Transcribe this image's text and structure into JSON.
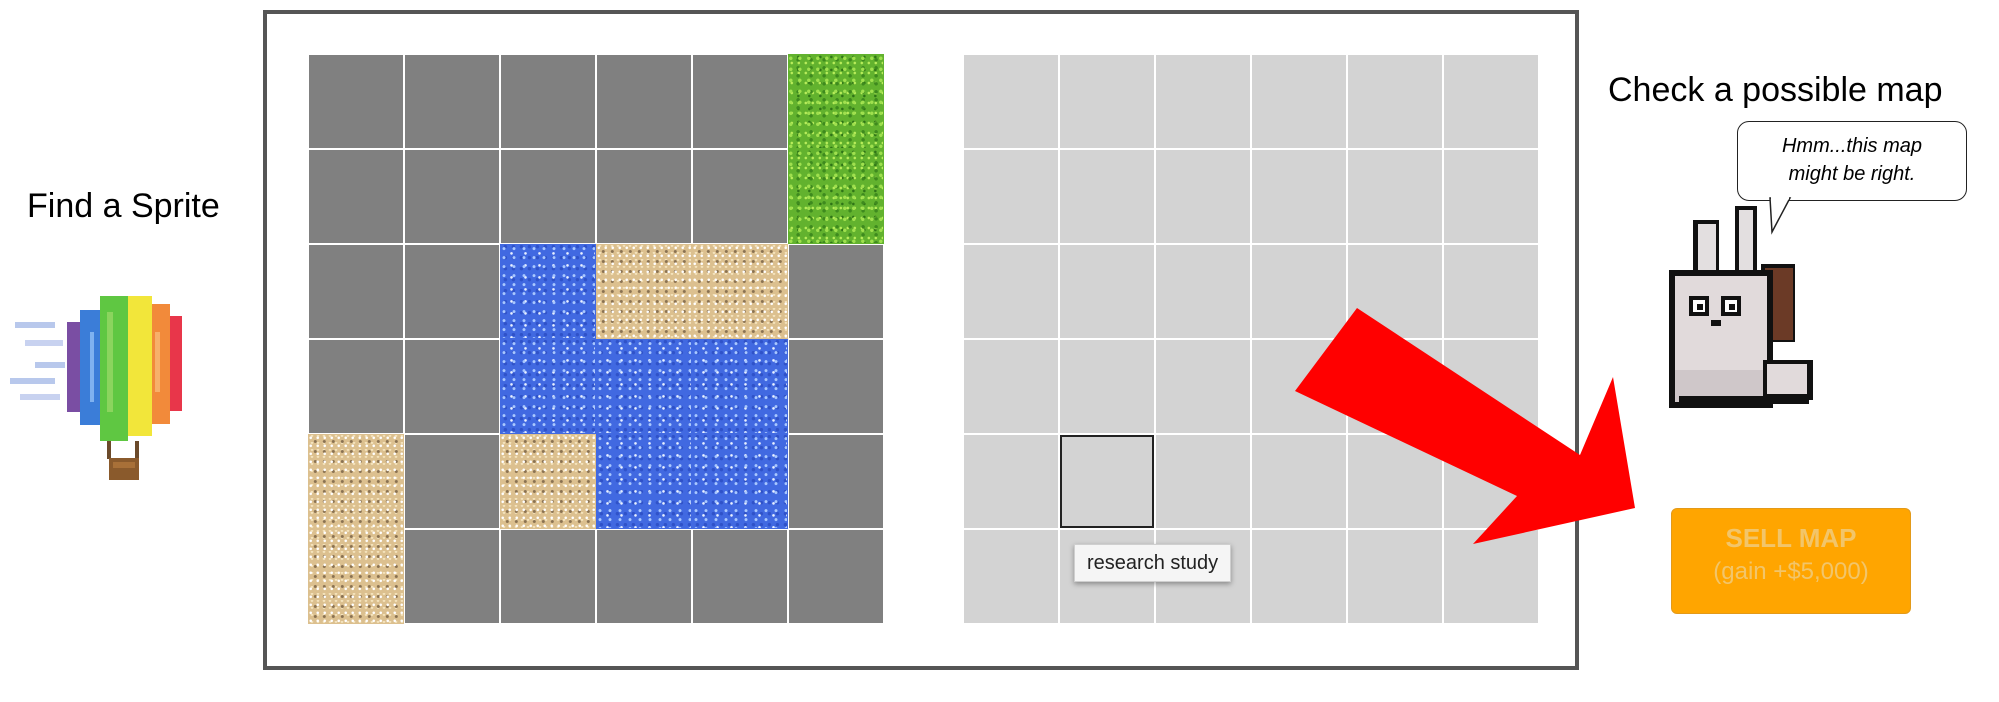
{
  "headings": {
    "find_sprite": "Find a Sprite",
    "check_map": "Check a possible map"
  },
  "explored_map": {
    "rows": [
      [
        "unknown",
        "unknown",
        "unknown",
        "unknown",
        "unknown",
        "grass"
      ],
      [
        "unknown",
        "unknown",
        "unknown",
        "unknown",
        "unknown",
        "grass"
      ],
      [
        "unknown",
        "unknown",
        "water",
        "sand",
        "sand",
        "unknown"
      ],
      [
        "unknown",
        "unknown",
        "water",
        "water",
        "water",
        "unknown"
      ],
      [
        "sand",
        "unknown",
        "sand",
        "water",
        "water",
        "unknown"
      ],
      [
        "sand",
        "unknown",
        "unknown",
        "unknown",
        "unknown",
        "unknown"
      ]
    ]
  },
  "guess_map": {
    "rows": 6,
    "cols": 6,
    "cell_color": "#d3d3d3",
    "hovered_cell": {
      "row": 4,
      "col": 1
    }
  },
  "tile_colors": {
    "unknown": "#808080",
    "grass": "#62b22e",
    "water": "#4169e1",
    "sand": "#dcc08f"
  },
  "speech_bubble": {
    "line1": "Hmm...this map",
    "line2": "might be right."
  },
  "sell_button": {
    "label": "SELL MAP",
    "sublabel": "(gain +$5,000)",
    "color": "#ffa500",
    "enabled": false
  },
  "tooltip": {
    "text": "research study"
  },
  "sprites": {
    "left": "hot-air-balloon-icon",
    "right": "rabbit-character-icon"
  },
  "arrow_color": "#ff0000"
}
